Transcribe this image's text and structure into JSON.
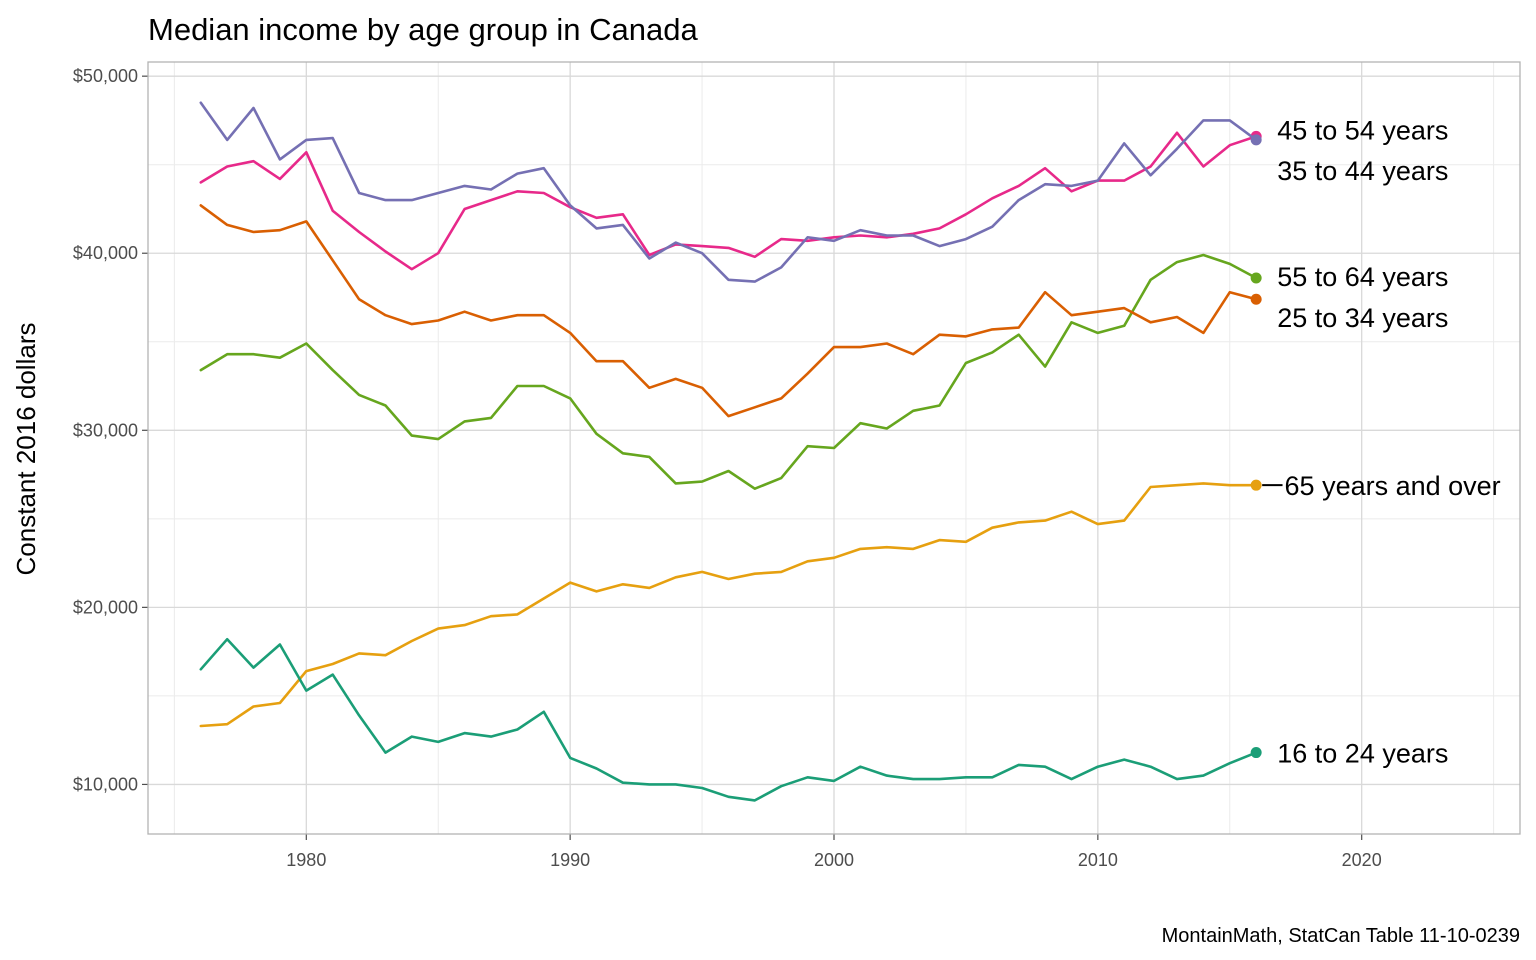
{
  "chart_data": {
    "type": "line",
    "title": "Median income by age group in Canada",
    "xlabel": "",
    "ylabel": "Constant 2016 dollars",
    "caption": "MontainMath, StatCan Table 11-10-0239",
    "xlim": [
      1974,
      2026
    ],
    "ylim": [
      7200,
      50800
    ],
    "x_ticks": [
      1980,
      1990,
      2000,
      2010,
      2020
    ],
    "x_tick_labels": [
      "1980",
      "1990",
      "2000",
      "2010",
      "2020"
    ],
    "y_ticks": [
      10000,
      20000,
      30000,
      40000,
      50000
    ],
    "y_tick_labels": [
      "$10,000",
      "$20,000",
      "$30,000",
      "$40,000",
      "$50,000"
    ],
    "grid": true,
    "legend": "direct labels at line ends",
    "x": [
      1976,
      1977,
      1978,
      1979,
      1980,
      1981,
      1982,
      1983,
      1984,
      1985,
      1986,
      1987,
      1988,
      1989,
      1990,
      1991,
      1992,
      1993,
      1994,
      1995,
      1996,
      1997,
      1998,
      1999,
      2000,
      2001,
      2002,
      2003,
      2004,
      2005,
      2006,
      2007,
      2008,
      2009,
      2010,
      2011,
      2012,
      2013,
      2014,
      2015,
      2016
    ],
    "series": [
      {
        "name": "45 to 54 years",
        "color": "#e7298a",
        "values": [
          44000,
          44900,
          45200,
          44200,
          45700,
          42400,
          41200,
          40100,
          39100,
          40000,
          42500,
          43000,
          43500,
          43400,
          42600,
          42000,
          42200,
          39900,
          40500,
          40400,
          40300,
          39800,
          40800,
          40700,
          40900,
          41000,
          40900,
          41100,
          41400,
          42200,
          43100,
          43800,
          44800,
          43500,
          44100,
          44100,
          44900,
          46800,
          44900,
          46100,
          46600
        ]
      },
      {
        "name": "35 to 44 years",
        "color": "#7570b3",
        "values": [
          48500,
          46400,
          48200,
          45300,
          46400,
          46500,
          43400,
          43000,
          43000,
          43400,
          43800,
          43600,
          44500,
          44800,
          42700,
          41400,
          41600,
          39700,
          40600,
          40000,
          38500,
          38400,
          39200,
          40900,
          40700,
          41300,
          41000,
          41000,
          40400,
          40800,
          41500,
          43000,
          43900,
          43800,
          44100,
          46200,
          44400,
          45900,
          47500,
          47500,
          46400
        ]
      },
      {
        "name": "55 to 64 years",
        "color": "#66a61e",
        "values": [
          33400,
          34300,
          34300,
          34100,
          34900,
          33400,
          32000,
          31400,
          29700,
          29500,
          30500,
          30700,
          32500,
          32500,
          31800,
          29800,
          28700,
          28500,
          27000,
          27100,
          27700,
          26700,
          27300,
          29100,
          29000,
          30400,
          30100,
          31100,
          31400,
          33800,
          34400,
          35400,
          33600,
          36100,
          35500,
          35900,
          38500,
          39500,
          39900,
          39400,
          38600
        ]
      },
      {
        "name": "25 to 34 years",
        "color": "#d95f02",
        "values": [
          42700,
          41600,
          41200,
          41300,
          41800,
          39600,
          37400,
          36500,
          36000,
          36200,
          36700,
          36200,
          36500,
          36500,
          35500,
          33900,
          33900,
          32400,
          32900,
          32400,
          30800,
          31300,
          31800,
          33200,
          34700,
          34700,
          34900,
          34300,
          35400,
          35300,
          35700,
          35800,
          37800,
          36500,
          36700,
          36900,
          36100,
          36400,
          35500,
          37800,
          37400
        ]
      },
      {
        "name": "65 years and over",
        "color": "#e6a010",
        "values": [
          13300,
          13400,
          14400,
          14600,
          16400,
          16800,
          17400,
          17300,
          18100,
          18800,
          19000,
          19500,
          19600,
          20500,
          21400,
          20900,
          21300,
          21100,
          21700,
          22000,
          21600,
          21900,
          22000,
          22600,
          22800,
          23300,
          23400,
          23300,
          23800,
          23700,
          24500,
          24800,
          24900,
          25400,
          24700,
          24900,
          26800,
          26900,
          27000,
          26900,
          26900
        ]
      },
      {
        "name": "16 to 24 years",
        "color": "#1b9e77",
        "values": [
          16500,
          18200,
          16600,
          17900,
          15300,
          16200,
          13900,
          11800,
          12700,
          12400,
          12900,
          12700,
          13100,
          14100,
          11500,
          10900,
          10100,
          10000,
          10000,
          9800,
          9300,
          9100,
          9900,
          10400,
          10200,
          11000,
          10500,
          10300,
          10300,
          10400,
          10400,
          11100,
          11000,
          10300,
          11000,
          11400,
          11000,
          10300,
          10500,
          11200,
          11800
        ]
      }
    ],
    "label_targets": {
      "45 to 54 years": 47000,
      "35 to 44 years": 44700,
      "55 to 64 years": 38700,
      "25 to 34 years": 36400,
      "65 years and over": 26900,
      "16 to 24 years": 11800
    }
  }
}
